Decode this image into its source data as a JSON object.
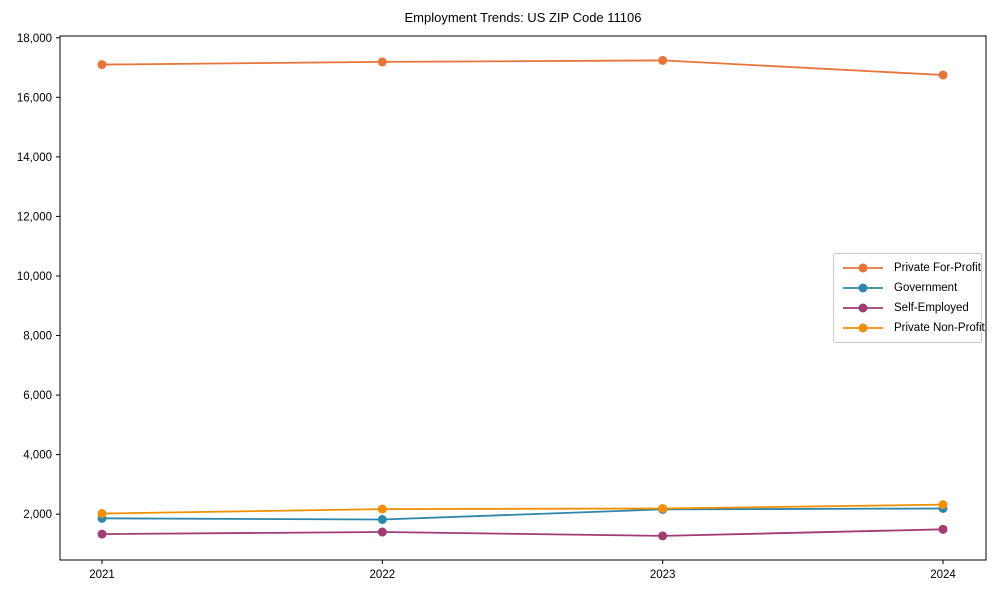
{
  "chart_data": {
    "type": "line",
    "title": "Employment Trends: US ZIP Code 11106",
    "xlabel": "",
    "ylabel": "",
    "x": [
      "2021",
      "2022",
      "2023",
      "2024"
    ],
    "yticks": [
      2000,
      4000,
      6000,
      8000,
      10000,
      12000,
      14000,
      16000,
      18000
    ],
    "ylim": [
      460,
      18060
    ],
    "grid": false,
    "legend_position": "center-right",
    "background_color": "#ffffff",
    "axis_color": "#000000",
    "legend_border_color": "#cccccc",
    "series": [
      {
        "name": "Private For-Profit",
        "color": "#E8743B",
        "values": [
          17100,
          17190,
          17240,
          16750
        ]
      },
      {
        "name": "Government",
        "color": "#2E86AB",
        "values": [
          1860,
          1820,
          2160,
          2190
        ]
      },
      {
        "name": "Self-Employed",
        "color": "#A23B72",
        "values": [
          1330,
          1400,
          1270,
          1490
        ]
      },
      {
        "name": "Private Non-Profit",
        "color": "#F18F01",
        "values": [
          2020,
          2170,
          2190,
          2320
        ]
      }
    ]
  }
}
